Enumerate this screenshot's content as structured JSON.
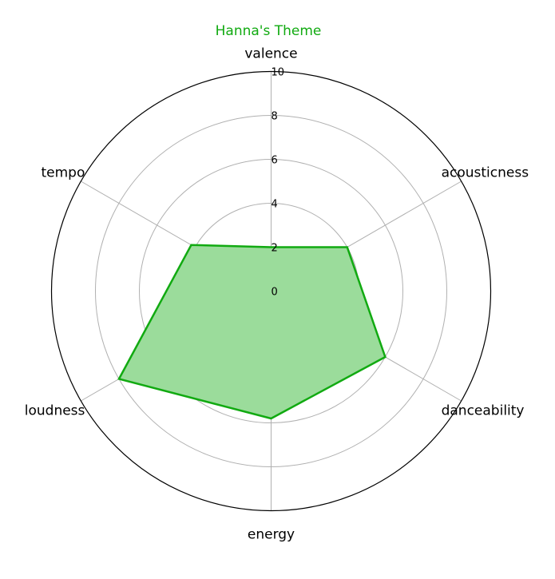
{
  "chart_data": {
    "type": "radar",
    "title": "Hanna's Theme",
    "categories": [
      "valence",
      "acousticness",
      "danceability",
      "energy",
      "loudness",
      "tempo"
    ],
    "series": [
      {
        "values": [
          2,
          4,
          6,
          5.8,
          8,
          4.2
        ]
      }
    ],
    "r_ticks": [
      "0",
      "2",
      "4",
      "6",
      "8",
      "10"
    ],
    "r_range": [
      0,
      10
    ],
    "grid": true,
    "colors": {
      "line": "#11aa11",
      "fill": "#9bdc9b",
      "title": "#11aa11",
      "grid": "#b0b0b0",
      "frame": "#000000"
    }
  }
}
